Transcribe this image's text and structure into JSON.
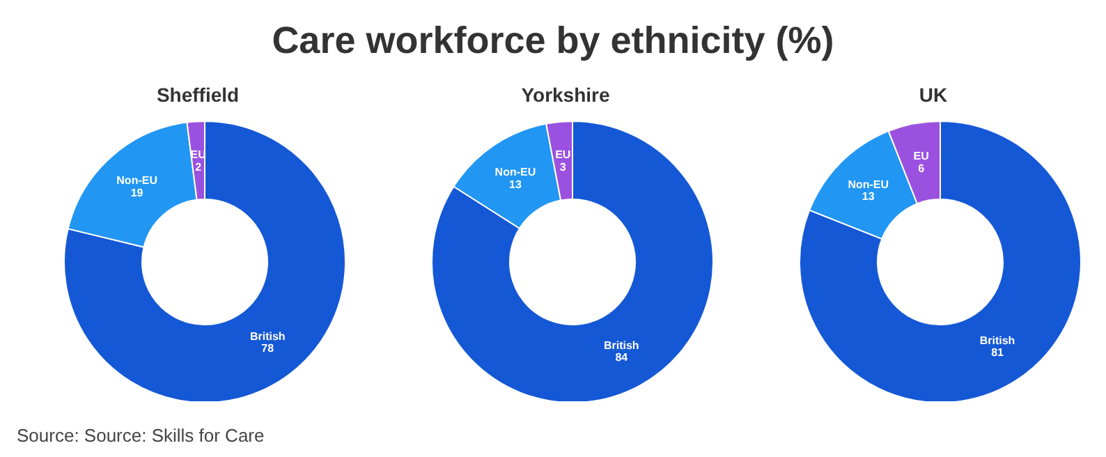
{
  "chart_data": [
    {
      "type": "donut",
      "annotations": [
        "Care workforce by ethnicity (%)"
      ],
      "title": "Sheffield",
      "categories": [
        "British",
        "Non-EU",
        "EU"
      ],
      "values": [
        78,
        19,
        2
      ],
      "colors": [
        "#1558d6",
        "#2196f3",
        "#9b51e0"
      ],
      "data_labels": true,
      "legend": false
    },
    {
      "type": "donut",
      "title": "Yorkshire",
      "categories": [
        "British",
        "Non-EU",
        "EU"
      ],
      "values": [
        84,
        13,
        3
      ],
      "colors": [
        "#1558d6",
        "#2196f3",
        "#9b51e0"
      ],
      "data_labels": true,
      "legend": false
    },
    {
      "type": "donut",
      "title": "UK",
      "annotations": [
        "Source: Source: Skills for Care"
      ],
      "categories": [
        "British",
        "Non-EU",
        "EU"
      ],
      "values": [
        81,
        13,
        6
      ],
      "colors": [
        "#1558d6",
        "#2196f3",
        "#9b51e0"
      ],
      "data_labels": true,
      "legend": false
    }
  ]
}
